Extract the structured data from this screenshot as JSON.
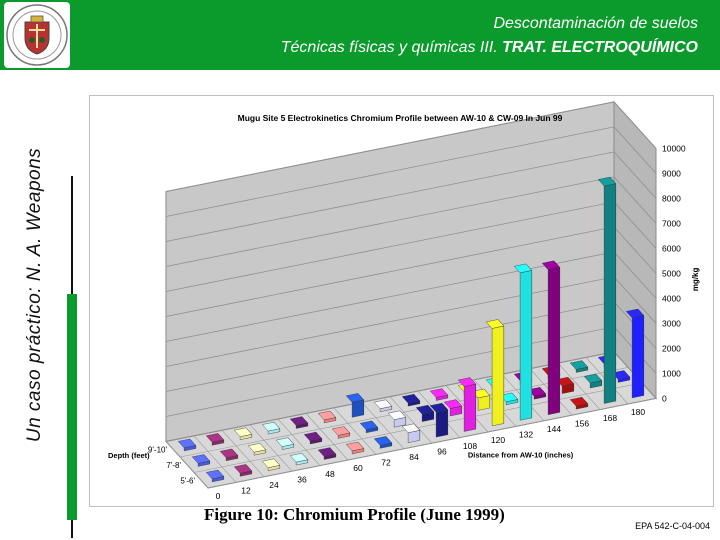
{
  "header": {
    "title_line1": "Descontaminación de suelos",
    "title_line2_a": "Técnicas físicas y químicas III. ",
    "title_line2_b": "TRAT. ELECTROQUÍMICO",
    "bg_color": "#0a9b2c"
  },
  "sidebar": {
    "vertical_text": "Un caso práctico: N. A. Weapons"
  },
  "caption": "Figure 10: Chromium Profile (June 1999)",
  "reference": "EPA 542-C-04-004",
  "chart_data": {
    "type": "bar",
    "title": "Mugu Site 5 Electrokinetics Chromium Profile between AW-10 & CW-09  In Jun 99",
    "xlabel": "Distance from AW-10 (inches)",
    "zlabel": "Depth (feet)",
    "ylabel": "mg/kg",
    "ylim": [
      0,
      10000
    ],
    "yticks": [
      "0",
      "1000",
      "2000",
      "3000",
      "4000",
      "5000",
      "6000",
      "7000",
      "8000",
      "9000",
      "10000"
    ],
    "categories": [
      "0",
      "12",
      "24",
      "36",
      "48",
      "60",
      "72",
      "84",
      "96",
      "108",
      "120",
      "132",
      "144",
      "156",
      "168",
      "180"
    ],
    "depths": [
      "5'-6'",
      "7'-8'",
      "9'-10'"
    ],
    "colors": [
      "#4a5bd6",
      "#8a2a6a",
      "#e9e0a0",
      "#a8e8f0",
      "#5a1a6a",
      "#f08080",
      "#2050c0",
      "#c8c8f0",
      "#1a1a80",
      "#e020e0",
      "#f0f020",
      "#20e0e0",
      "#800080",
      "#a01010",
      "#108080",
      "#2020ff"
    ],
    "series": [
      {
        "name": "5'-6'",
        "values": [
          0,
          0,
          0,
          0,
          0,
          0,
          0,
          400,
          1000,
          1800,
          3900,
          5900,
          5800,
          0,
          8700,
          3200
        ]
      },
      {
        "name": "7'-8'",
        "values": [
          0,
          0,
          0,
          0,
          0,
          0,
          0,
          300,
          300,
          300,
          500,
          0,
          0,
          300,
          200,
          0
        ]
      },
      {
        "name": "9'-10'",
        "values": [
          0,
          0,
          0,
          0,
          0,
          0,
          600,
          0,
          0,
          0,
          0,
          0,
          0,
          0,
          0,
          0
        ]
      }
    ]
  }
}
